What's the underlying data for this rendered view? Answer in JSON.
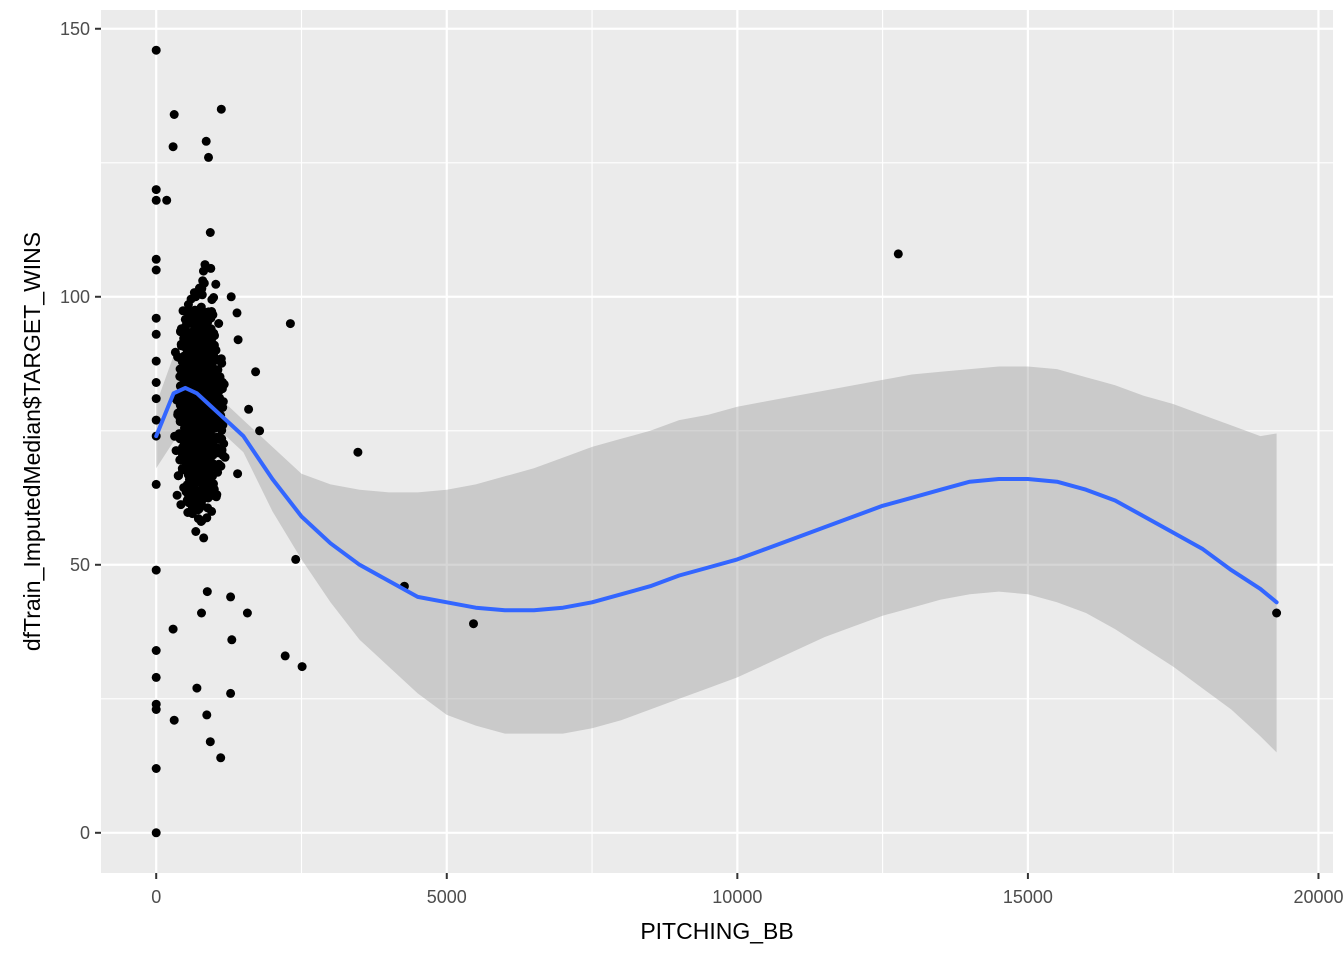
{
  "chart_data": {
    "type": "scatter",
    "xlabel": "PITCHING_BB",
    "ylabel": "dfTrain_ImputedMedian$TARGET_WINS",
    "xlim": [
      -950,
      20250
    ],
    "ylim": [
      -7.5,
      153.5
    ],
    "x_ticks": [
      0,
      5000,
      10000,
      15000,
      20000
    ],
    "x_tick_labels": [
      "0",
      "5000",
      "10000",
      "15000",
      "20000"
    ],
    "y_ticks": [
      0,
      50,
      100,
      150
    ],
    "y_tick_labels": [
      "0",
      "50",
      "100",
      "150"
    ],
    "grid": true,
    "legend": "none",
    "colors": {
      "panel": "#ebebeb",
      "grid": "#ffffff",
      "points": "#000000",
      "smooth_line": "#3366ff",
      "ribbon": "#cccccc"
    },
    "series": [
      {
        "kind": "points",
        "cluster_points": [
          [
            0,
            146
          ],
          [
            0,
            120
          ],
          [
            0,
            118
          ],
          [
            0,
            107
          ],
          [
            0,
            105
          ],
          [
            0,
            96
          ],
          [
            0,
            93
          ],
          [
            0,
            88
          ],
          [
            0,
            84
          ],
          [
            0,
            81
          ],
          [
            0,
            77
          ],
          [
            0,
            74
          ],
          [
            0,
            65
          ],
          [
            0,
            49
          ],
          [
            0,
            34
          ],
          [
            0,
            29
          ],
          [
            0,
            24
          ],
          [
            0,
            23
          ],
          [
            0,
            12
          ],
          [
            0,
            0
          ],
          [
            310,
            134
          ],
          [
            290,
            128
          ],
          [
            180,
            118
          ],
          [
            290,
            38
          ],
          [
            310,
            21
          ],
          [
            860,
            129
          ],
          [
            900,
            126
          ],
          [
            930,
            112
          ],
          [
            840,
            106
          ],
          [
            800,
            103
          ],
          [
            880,
            45
          ],
          [
            780,
            41
          ],
          [
            700,
            27
          ],
          [
            870,
            22
          ],
          [
            930,
            17
          ],
          [
            1110,
            14
          ],
          [
            1120,
            135
          ],
          [
            1290,
            100
          ],
          [
            1390,
            97
          ],
          [
            1410,
            92
          ],
          [
            1400,
            67
          ],
          [
            1280,
            44
          ],
          [
            1300,
            36
          ],
          [
            1280,
            26
          ],
          [
            1590,
            79
          ],
          [
            1570,
            41
          ],
          [
            1710,
            86
          ],
          [
            1780,
            75
          ]
        ],
        "outliers": [
          [
            2310,
            95
          ],
          [
            2400,
            51
          ],
          [
            2220,
            33
          ],
          [
            2510,
            31
          ],
          [
            3470,
            71
          ],
          [
            4270,
            46
          ],
          [
            5460,
            39
          ],
          [
            12770,
            108
          ],
          [
            19280,
            41
          ]
        ],
        "dense_cluster": {
          "x_range": [
            170,
            1500
          ],
          "x_mode": 750,
          "y_range": [
            47,
            114
          ],
          "y_mean": 80
        }
      },
      {
        "kind": "loess_smooth",
        "x": [
          0,
          300,
          500,
          700,
          900,
          1100,
          1300,
          1500,
          2000,
          2500,
          3000,
          3500,
          4000,
          4500,
          5000,
          5500,
          6000,
          6500,
          7000,
          7500,
          8000,
          8500,
          9000,
          9500,
          10000,
          10500,
          11000,
          11500,
          12000,
          12500,
          13000,
          13500,
          14000,
          14500,
          15000,
          15500,
          16000,
          16500,
          17000,
          17500,
          18000,
          18500,
          19000,
          19280
        ],
        "y": [
          74,
          82,
          83,
          82,
          80,
          78,
          76,
          74,
          66,
          59,
          54,
          50,
          47,
          44,
          43,
          42,
          41.5,
          41.5,
          42,
          43,
          44.5,
          46,
          48,
          49.5,
          51,
          53,
          55,
          57,
          59,
          61,
          62.5,
          64,
          65.5,
          66,
          66,
          65.5,
          64,
          62,
          59,
          56,
          53,
          49,
          45.5,
          43
        ],
        "ci_lower": [
          68,
          73,
          77,
          78,
          77,
          75,
          73,
          71,
          60,
          51,
          43,
          36,
          31,
          26,
          22,
          20,
          18.5,
          18.5,
          18.5,
          19.5,
          21,
          23,
          25,
          27,
          29,
          31.5,
          34,
          36.5,
          38.5,
          40.5,
          42,
          43.5,
          44.5,
          45,
          44.5,
          43,
          41,
          38,
          34.5,
          31,
          27,
          23,
          18,
          15
        ],
        "ci_upper": [
          80,
          89,
          89,
          87,
          84,
          81,
          79,
          77,
          72,
          67,
          65,
          64,
          63.5,
          63.5,
          64,
          65,
          66.5,
          68,
          70,
          72,
          73.5,
          75,
          77,
          78,
          79.5,
          80.5,
          81.5,
          82.5,
          83.5,
          84.5,
          85.5,
          86,
          86.5,
          87,
          87,
          86.5,
          85,
          83.5,
          81.5,
          80,
          78,
          76,
          74,
          74.5
        ]
      }
    ]
  }
}
